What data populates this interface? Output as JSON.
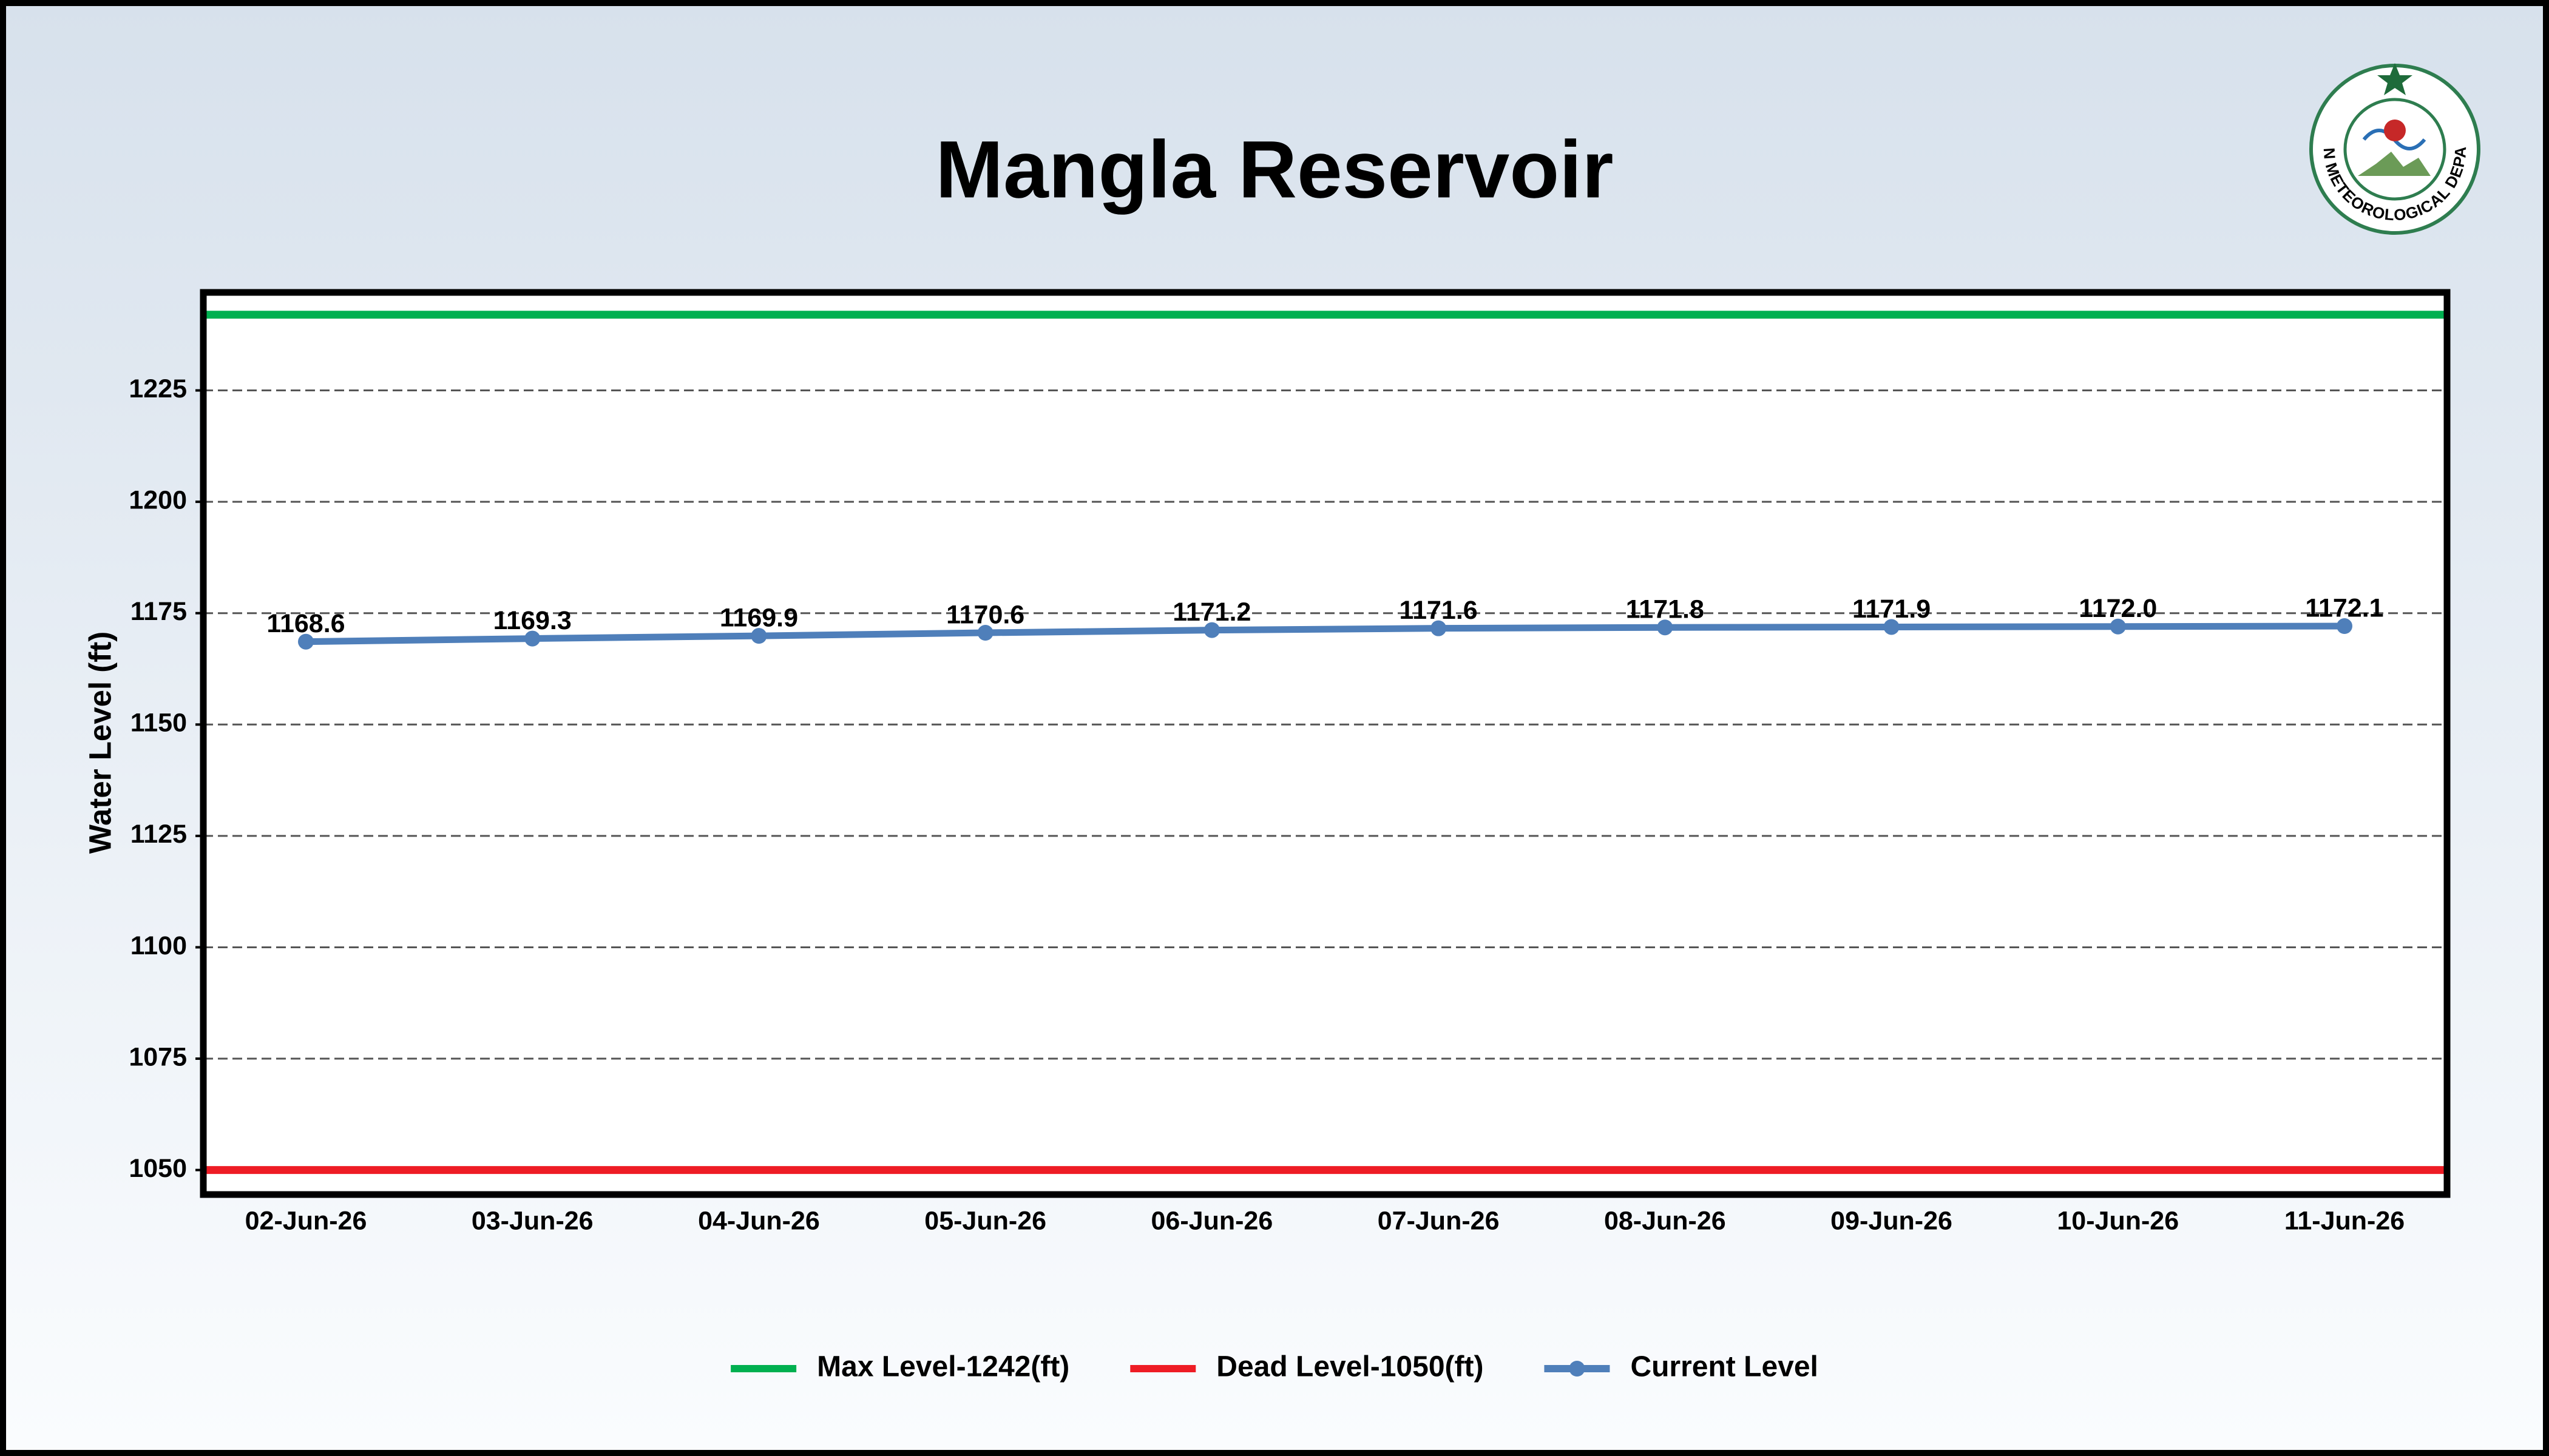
{
  "logo_text": "PAKISTAN METEOROLOGICAL DEPARTMENT",
  "chart_data": {
    "type": "line",
    "title": "Mangla Reservoir",
    "y_label": "Water Level (ft)",
    "categories": [
      "02-Jun-26",
      "03-Jun-26",
      "04-Jun-26",
      "05-Jun-26",
      "06-Jun-26",
      "07-Jun-26",
      "08-Jun-26",
      "09-Jun-26",
      "10-Jun-26",
      "11-Jun-26"
    ],
    "reference_lines": [
      {
        "name": "Max Level-1242(ft)",
        "value": 1242,
        "color": "#00b050"
      },
      {
        "name": "Dead Level-1050(ft)",
        "value": 1050,
        "color": "#ee1c25"
      }
    ],
    "series": [
      {
        "name": "Current Level",
        "color": "#4f7fba",
        "values": [
          1168.6,
          1169.3,
          1169.9,
          1170.6,
          1171.2,
          1171.6,
          1171.8,
          1171.9,
          1172.0,
          1172.1
        ],
        "value_labels": [
          "1168.6",
          "1169.3",
          "1169.9",
          "1170.6",
          "1171.2",
          "1171.6",
          "1171.8",
          "1171.9",
          "1172.0",
          "1172.1"
        ]
      }
    ],
    "ylim": [
      1044.5,
      1247
    ],
    "yticks": [
      1050,
      1075,
      1100,
      1125,
      1150,
      1175,
      1200,
      1225
    ],
    "grid": true,
    "grid_style": "dashed",
    "legend": "bottom"
  }
}
